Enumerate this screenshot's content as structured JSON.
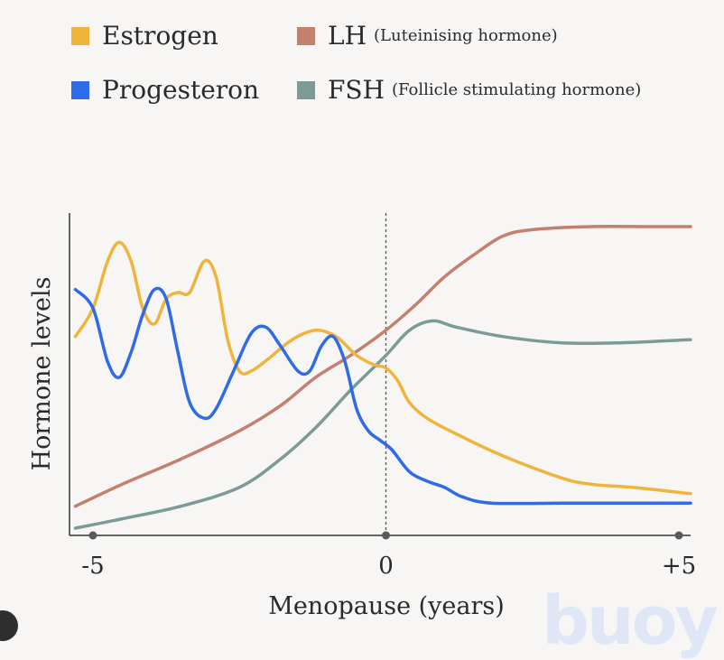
{
  "watermark": "buoy",
  "chart_data": {
    "type": "line",
    "title": "",
    "xlabel": "Menopause (years)",
    "ylabel": "Hormone levels",
    "xlim": [
      -5.4,
      5.2
    ],
    "ylim": [
      0,
      100
    ],
    "xticks": [
      -5,
      0,
      5
    ],
    "xtick_labels": [
      "-5",
      "0",
      "+5"
    ],
    "reference_line_x": 0,
    "legend": "top",
    "series": [
      {
        "name": "Estrogen",
        "sub": "",
        "color": "#f0b43a",
        "points": [
          [
            -5.3,
            63
          ],
          [
            -5.0,
            72
          ],
          [
            -4.75,
            87
          ],
          [
            -4.55,
            93
          ],
          [
            -4.35,
            87
          ],
          [
            -4.15,
            72
          ],
          [
            -3.95,
            67
          ],
          [
            -3.75,
            75
          ],
          [
            -3.55,
            77
          ],
          [
            -3.35,
            77
          ],
          [
            -3.1,
            87
          ],
          [
            -2.9,
            82
          ],
          [
            -2.7,
            62
          ],
          [
            -2.5,
            52
          ],
          [
            -2.3,
            52
          ],
          [
            -2.0,
            56
          ],
          [
            -1.6,
            62
          ],
          [
            -1.2,
            65
          ],
          [
            -0.85,
            63
          ],
          [
            -0.5,
            57
          ],
          [
            -0.2,
            54
          ],
          [
            0.0,
            53
          ],
          [
            0.2,
            49
          ],
          [
            0.4,
            42
          ],
          [
            0.7,
            37
          ],
          [
            1.2,
            32
          ],
          [
            2.0,
            25
          ],
          [
            3.0,
            18
          ],
          [
            3.5,
            16
          ],
          [
            4.2,
            15
          ],
          [
            5.2,
            13
          ]
        ]
      },
      {
        "name": "Progesteron",
        "sub": "",
        "color": "#2f6be6",
        "points": [
          [
            -5.3,
            78
          ],
          [
            -5.0,
            72
          ],
          [
            -4.75,
            55
          ],
          [
            -4.55,
            50
          ],
          [
            -4.35,
            58
          ],
          [
            -4.15,
            70
          ],
          [
            -3.95,
            78
          ],
          [
            -3.75,
            75
          ],
          [
            -3.55,
            58
          ],
          [
            -3.35,
            42
          ],
          [
            -3.1,
            37
          ],
          [
            -2.9,
            40
          ],
          [
            -2.6,
            52
          ],
          [
            -2.3,
            64
          ],
          [
            -2.05,
            66
          ],
          [
            -1.8,
            60
          ],
          [
            -1.5,
            52
          ],
          [
            -1.3,
            52
          ],
          [
            -1.1,
            60
          ],
          [
            -0.9,
            63
          ],
          [
            -0.7,
            55
          ],
          [
            -0.5,
            40
          ],
          [
            -0.3,
            33
          ],
          [
            -0.1,
            30
          ],
          [
            0.1,
            27
          ],
          [
            0.4,
            20
          ],
          [
            0.7,
            17
          ],
          [
            1.0,
            15
          ],
          [
            1.3,
            12
          ],
          [
            1.8,
            10
          ],
          [
            3.0,
            10
          ],
          [
            4.0,
            10
          ],
          [
            5.2,
            10
          ]
        ]
      },
      {
        "name": "LH",
        "sub": "(Luteinising hormone)",
        "color": "#c57f6d",
        "points": [
          [
            -5.3,
            9
          ],
          [
            -4.5,
            16
          ],
          [
            -3.5,
            24
          ],
          [
            -2.5,
            33
          ],
          [
            -1.8,
            41
          ],
          [
            -1.2,
            50
          ],
          [
            -0.6,
            57
          ],
          [
            0.0,
            65
          ],
          [
            0.5,
            73
          ],
          [
            1.0,
            82
          ],
          [
            1.5,
            89
          ],
          [
            2.0,
            95
          ],
          [
            2.5,
            97
          ],
          [
            3.5,
            98
          ],
          [
            4.5,
            98
          ],
          [
            5.2,
            98
          ]
        ]
      },
      {
        "name": "FSH",
        "sub": "(Follicle stimulating hormone)",
        "color": "#7b9b97",
        "points": [
          [
            -5.3,
            2
          ],
          [
            -4.5,
            5
          ],
          [
            -3.5,
            9
          ],
          [
            -2.5,
            15
          ],
          [
            -1.8,
            24
          ],
          [
            -1.2,
            34
          ],
          [
            -0.6,
            46
          ],
          [
            0.0,
            57
          ],
          [
            0.4,
            65
          ],
          [
            0.8,
            68
          ],
          [
            1.2,
            66
          ],
          [
            2.0,
            63
          ],
          [
            3.0,
            61
          ],
          [
            4.0,
            61
          ],
          [
            5.2,
            62
          ]
        ]
      }
    ]
  }
}
